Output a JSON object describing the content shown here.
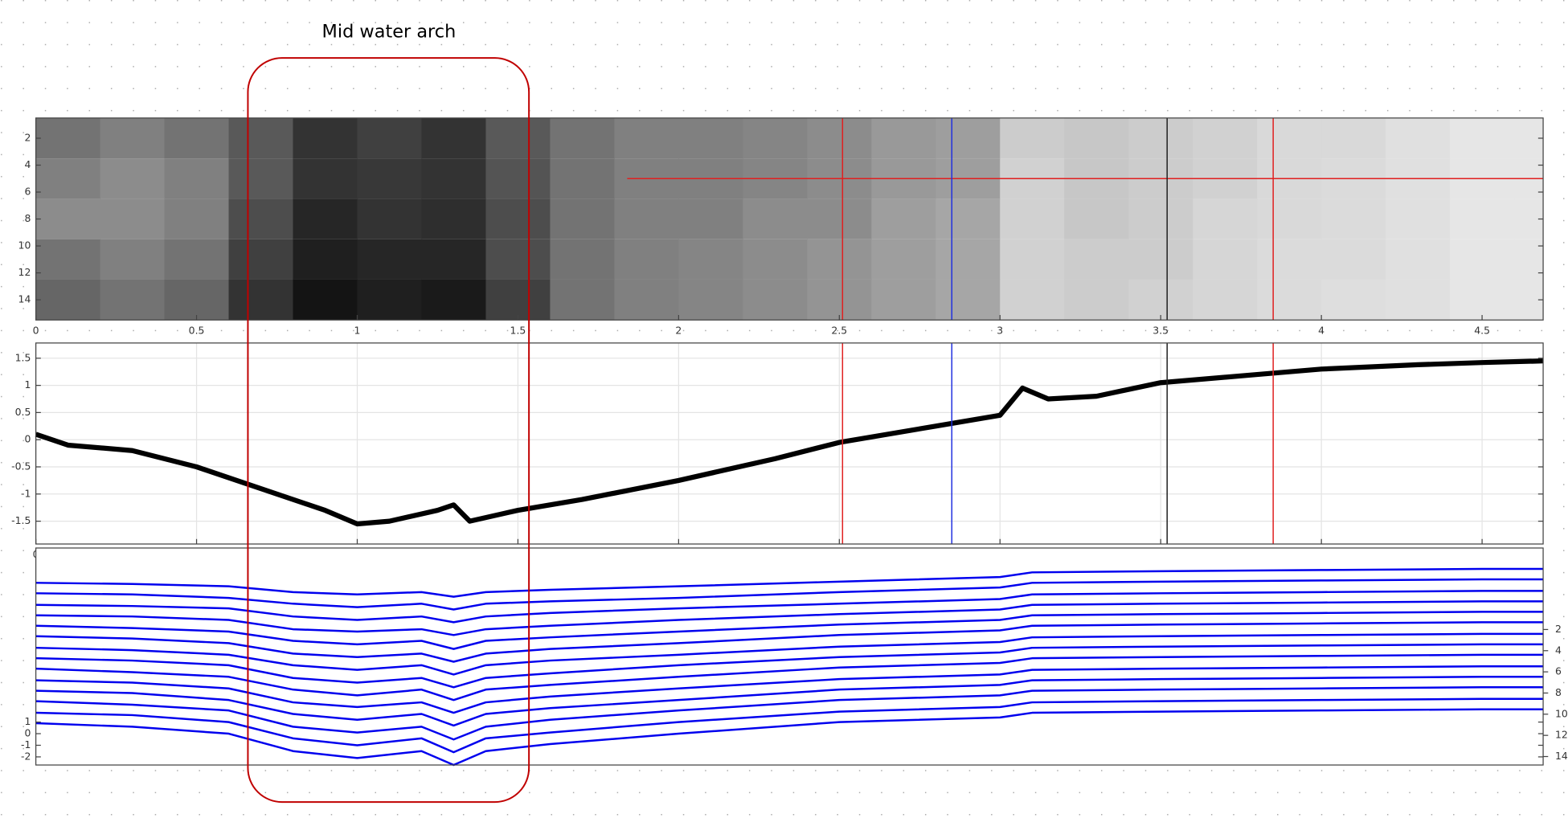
{
  "annotation": "Mid water arch",
  "chart_data": [
    {
      "type": "heatmap",
      "xbins": [
        0,
        0.2,
        0.4,
        0.6,
        0.8,
        1.0,
        1.2,
        1.4,
        1.6,
        1.8,
        2.0,
        2.2,
        2.4,
        2.6,
        2.8,
        3.0,
        3.2,
        3.4,
        3.6,
        3.8,
        4.0,
        4.2,
        4.4,
        4.6,
        4.69
      ],
      "ybins": [
        0.5,
        3.5,
        6.5,
        9.5,
        12.5,
        15.5
      ],
      "z": [
        [
          0.45,
          0.5,
          0.45,
          0.35,
          0.2,
          0.25,
          0.2,
          0.35,
          0.45,
          0.5,
          0.5,
          0.52,
          0.55,
          0.6,
          0.62,
          0.8,
          0.78,
          0.8,
          0.82,
          0.85,
          0.85,
          0.88,
          0.9,
          0.9
        ],
        [
          0.5,
          0.55,
          0.5,
          0.35,
          0.2,
          0.22,
          0.2,
          0.33,
          0.45,
          0.5,
          0.5,
          0.52,
          0.55,
          0.6,
          0.62,
          0.82,
          0.78,
          0.8,
          0.82,
          0.85,
          0.86,
          0.88,
          0.9,
          0.9
        ],
        [
          0.55,
          0.55,
          0.5,
          0.3,
          0.15,
          0.2,
          0.18,
          0.3,
          0.45,
          0.5,
          0.5,
          0.55,
          0.55,
          0.62,
          0.65,
          0.82,
          0.78,
          0.8,
          0.84,
          0.85,
          0.86,
          0.88,
          0.9,
          0.9
        ],
        [
          0.45,
          0.5,
          0.45,
          0.25,
          0.12,
          0.15,
          0.15,
          0.3,
          0.45,
          0.5,
          0.52,
          0.55,
          0.58,
          0.62,
          0.65,
          0.82,
          0.8,
          0.8,
          0.84,
          0.86,
          0.86,
          0.88,
          0.9,
          0.9
        ],
        [
          0.4,
          0.45,
          0.4,
          0.2,
          0.08,
          0.12,
          0.1,
          0.25,
          0.45,
          0.5,
          0.52,
          0.55,
          0.58,
          0.62,
          0.65,
          0.82,
          0.8,
          0.82,
          0.84,
          0.86,
          0.87,
          0.88,
          0.9,
          0.9
        ]
      ],
      "xlim": [
        0,
        4.69
      ],
      "xticks": [
        0,
        0.5,
        1,
        1.5,
        2,
        2.5,
        3,
        3.5,
        4,
        4.5
      ],
      "ylim": [
        15.5,
        0.5
      ],
      "yticks": [
        2,
        4,
        6,
        8,
        10,
        12,
        14
      ],
      "markers": [
        {
          "x": 2.51,
          "color": "#e02020"
        },
        {
          "x": 2.85,
          "color": "#2030e0"
        },
        {
          "x": 3.52,
          "color": "#202020"
        },
        {
          "x": 3.85,
          "color": "#e02020"
        }
      ],
      "hline": {
        "y": 5,
        "x0": 1.84,
        "color": "#e02020"
      }
    },
    {
      "type": "line",
      "color": "#000000",
      "grid": true,
      "x": [
        0,
        0.1,
        0.3,
        0.5,
        0.7,
        0.9,
        1.0,
        1.1,
        1.25,
        1.3,
        1.35,
        1.5,
        1.7,
        2.0,
        2.3,
        2.5,
        2.8,
        3.0,
        3.07,
        3.15,
        3.3,
        3.5,
        3.8,
        4.0,
        4.3,
        4.5,
        4.69
      ],
      "values": [
        0.1,
        -0.1,
        -0.2,
        -0.5,
        -0.9,
        -1.3,
        -1.55,
        -1.5,
        -1.3,
        -1.2,
        -1.5,
        -1.3,
        -1.1,
        -0.75,
        -0.35,
        -0.05,
        0.25,
        0.45,
        0.95,
        0.75,
        0.8,
        1.05,
        1.2,
        1.3,
        1.38,
        1.42,
        1.45
      ],
      "xlim": [
        0,
        4.69
      ],
      "xticks": [
        0,
        0.5,
        1,
        1.5,
        2,
        2.5,
        3,
        3.5,
        4,
        4.5
      ],
      "ylim": [
        -1.92,
        1.78
      ],
      "yticks": [
        -1.5,
        -1,
        -0.5,
        0,
        0.5,
        1,
        1.5
      ],
      "markers": [
        {
          "x": 2.51,
          "color": "#e02020"
        },
        {
          "x": 2.85,
          "color": "#2030e0"
        },
        {
          "x": 3.52,
          "color": "#202020"
        },
        {
          "x": 3.85,
          "color": "#e02020"
        }
      ]
    },
    {
      "type": "multiline",
      "x": [
        0,
        0.3,
        0.6,
        0.8,
        1.0,
        1.2,
        1.3,
        1.4,
        1.6,
        2.0,
        2.5,
        3.0,
        3.1,
        3.5,
        4.0,
        4.5,
        4.69
      ],
      "xlim": [
        0,
        4.69
      ],
      "ylim": [
        -2.7,
        16
      ],
      "yticks": [
        -2,
        -1,
        0,
        1
      ],
      "y2lim": [
        14.8,
        -5.7
      ],
      "y2ticks": [
        2,
        4,
        6,
        8,
        10,
        12,
        14
      ],
      "series": [
        {
          "color": "#0000ee",
          "values": [
            13.0,
            12.9,
            12.7,
            12.2,
            12.0,
            12.2,
            11.8,
            12.2,
            12.4,
            12.7,
            13.1,
            13.5,
            13.9,
            14.0,
            14.1,
            14.2,
            14.2
          ]
        },
        {
          "color": "#0000ee",
          "values": [
            12.1,
            12.0,
            11.7,
            11.2,
            10.9,
            11.2,
            10.7,
            11.2,
            11.4,
            11.7,
            12.2,
            12.6,
            13.0,
            13.1,
            13.2,
            13.3,
            13.3
          ]
        },
        {
          "color": "#0000ee",
          "values": [
            11.1,
            11.0,
            10.8,
            10.1,
            9.8,
            10.1,
            9.6,
            10.1,
            10.4,
            10.8,
            11.2,
            11.6,
            12.0,
            12.1,
            12.2,
            12.3,
            12.3
          ]
        },
        {
          "color": "#0000ee",
          "values": [
            10.2,
            10.1,
            9.8,
            9.0,
            8.8,
            9.0,
            8.5,
            9.0,
            9.3,
            9.8,
            10.3,
            10.7,
            11.1,
            11.2,
            11.3,
            11.4,
            11.4
          ]
        },
        {
          "color": "#0000ee",
          "values": [
            9.3,
            9.1,
            8.8,
            8.0,
            7.7,
            8.0,
            7.3,
            8.0,
            8.3,
            8.8,
            9.4,
            9.8,
            10.2,
            10.3,
            10.4,
            10.5,
            10.5
          ]
        },
        {
          "color": "#0000ee",
          "values": [
            8.4,
            8.2,
            7.8,
            6.9,
            6.6,
            6.9,
            6.2,
            6.9,
            7.3,
            7.8,
            8.5,
            8.9,
            9.3,
            9.4,
            9.5,
            9.6,
            9.6
          ]
        },
        {
          "color": "#0000ee",
          "values": [
            7.4,
            7.2,
            6.8,
            5.9,
            5.5,
            5.9,
            5.1,
            5.9,
            6.3,
            6.8,
            7.5,
            7.9,
            8.3,
            8.4,
            8.5,
            8.6,
            8.6
          ]
        },
        {
          "color": "#0000ee",
          "values": [
            6.5,
            6.3,
            5.9,
            4.8,
            4.4,
            4.8,
            4.0,
            4.8,
            5.2,
            5.9,
            6.6,
            7.0,
            7.4,
            7.5,
            7.6,
            7.7,
            7.7
          ]
        },
        {
          "color": "#0000ee",
          "values": [
            5.6,
            5.3,
            4.9,
            3.8,
            3.3,
            3.8,
            2.9,
            3.8,
            4.2,
            4.9,
            5.7,
            6.1,
            6.5,
            6.6,
            6.7,
            6.8,
            6.8
          ]
        },
        {
          "color": "#0000ee",
          "values": [
            4.6,
            4.4,
            3.9,
            2.7,
            2.3,
            2.7,
            1.8,
            2.7,
            3.2,
            3.9,
            4.7,
            5.1,
            5.5,
            5.6,
            5.7,
            5.8,
            5.8
          ]
        },
        {
          "color": "#0000ee",
          "values": [
            3.7,
            3.5,
            2.9,
            1.7,
            1.2,
            1.7,
            0.7,
            1.7,
            2.2,
            2.9,
            3.8,
            4.2,
            4.6,
            4.7,
            4.8,
            4.9,
            4.9
          ]
        },
        {
          "color": "#0000ee",
          "values": [
            2.8,
            2.5,
            2.0,
            0.6,
            0.1,
            0.6,
            -0.5,
            0.6,
            1.2,
            2.0,
            2.9,
            3.3,
            3.7,
            3.8,
            3.9,
            4.0,
            4.0
          ]
        },
        {
          "color": "#0000ee",
          "values": [
            1.8,
            1.6,
            1.0,
            -0.4,
            -1.0,
            -0.4,
            -1.6,
            -0.4,
            0.1,
            1.0,
            1.9,
            2.3,
            2.7,
            2.8,
            2.9,
            3.0,
            3.0
          ]
        },
        {
          "color": "#0000ee",
          "values": [
            0.9,
            0.6,
            0.0,
            -1.5,
            -2.1,
            -1.5,
            -2.7,
            -1.5,
            -0.9,
            0.0,
            1.0,
            1.4,
            1.8,
            1.9,
            2.0,
            2.1,
            2.1
          ]
        }
      ]
    }
  ]
}
